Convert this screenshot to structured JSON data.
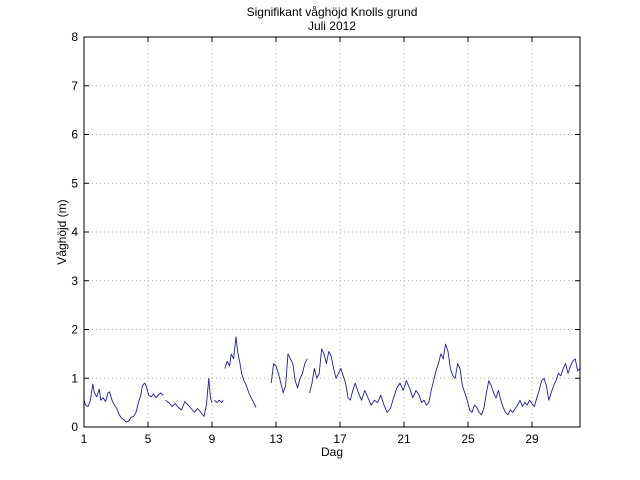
{
  "chart_data": {
    "type": "line",
    "title": "Signifikant våghöjd Knolls grund",
    "subtitle": "Juli 2012",
    "xlabel": "Dag",
    "ylabel": "Våghöjd (m)",
    "xlim": [
      1,
      32
    ],
    "ylim": [
      0,
      8
    ],
    "xticks": [
      1,
      5,
      9,
      13,
      17,
      21,
      25,
      29
    ],
    "yticks": [
      0,
      1,
      2,
      3,
      4,
      5,
      6,
      7,
      8
    ],
    "grid": true,
    "line_color": "#1f1fa0",
    "segments": [
      {
        "x": [
          1.0,
          1.1,
          1.25,
          1.4,
          1.55,
          1.65,
          1.8,
          1.95,
          2.05,
          2.2,
          2.35,
          2.5,
          2.6,
          2.75,
          2.9,
          3.05,
          3.2,
          3.35,
          3.5,
          3.65,
          3.8,
          3.95,
          4.1,
          4.25,
          4.4,
          4.55,
          4.65,
          4.8,
          4.9
        ],
        "y": [
          0.55,
          0.45,
          0.42,
          0.55,
          0.88,
          0.7,
          0.62,
          0.78,
          0.55,
          0.6,
          0.52,
          0.7,
          0.72,
          0.55,
          0.45,
          0.38,
          0.25,
          0.18,
          0.15,
          0.1,
          0.12,
          0.2,
          0.22,
          0.3,
          0.5,
          0.65,
          0.85,
          0.9,
          0.82
        ]
      },
      {
        "x": [
          4.9,
          5.05,
          5.2,
          5.35,
          5.5,
          5.65,
          5.8,
          5.95
        ],
        "y": [
          0.82,
          0.65,
          0.62,
          0.68,
          0.6,
          0.66,
          0.7,
          0.65
        ]
      },
      {
        "x": [
          6.1,
          6.3,
          6.5,
          6.7,
          6.9,
          7.1,
          7.3,
          7.5,
          7.7,
          7.9,
          8.1,
          8.3,
          8.5,
          8.65,
          8.8
        ],
        "y": [
          0.55,
          0.5,
          0.42,
          0.48,
          0.4,
          0.35,
          0.52,
          0.45,
          0.38,
          0.3,
          0.38,
          0.3,
          0.22,
          0.45,
          1.0
        ]
      },
      {
        "x": [
          8.8,
          8.9,
          9.0
        ],
        "y": [
          1.0,
          0.6,
          0.5
        ]
      },
      {
        "x": [
          9.15,
          9.3,
          9.45,
          9.6,
          9.7
        ],
        "y": [
          0.55,
          0.5,
          0.55,
          0.5,
          0.55
        ]
      },
      {
        "x": [
          9.8,
          9.95,
          10.1,
          10.2,
          10.35,
          10.5,
          10.6,
          10.75,
          10.85,
          11.0,
          11.15,
          11.3,
          11.45,
          11.6,
          11.75
        ],
        "y": [
          1.2,
          1.35,
          1.25,
          1.5,
          1.4,
          1.85,
          1.55,
          1.3,
          1.1,
          0.95,
          0.85,
          0.7,
          0.6,
          0.5,
          0.4
        ]
      },
      {
        "x": [
          12.7,
          12.85,
          13.0,
          13.15,
          13.3,
          13.45,
          13.6,
          13.75,
          13.9,
          14.05,
          14.2,
          14.35,
          14.5,
          14.65,
          14.8,
          14.95
        ],
        "y": [
          0.9,
          1.3,
          1.25,
          1.1,
          0.9,
          0.7,
          0.85,
          1.5,
          1.4,
          1.3,
          0.95,
          0.8,
          1.0,
          1.1,
          1.3,
          1.4
        ]
      },
      {
        "x": [
          15.1,
          15.25,
          15.4,
          15.55,
          15.7,
          15.85,
          16.0,
          16.15,
          16.3,
          16.45,
          16.6,
          16.75,
          16.9,
          17.05,
          17.2,
          17.35,
          17.5,
          17.65,
          17.8,
          17.95
        ],
        "y": [
          0.7,
          0.9,
          1.2,
          1.0,
          1.1,
          1.6,
          1.5,
          1.3,
          1.55,
          1.45,
          1.2,
          1.0,
          1.1,
          1.2,
          1.05,
          0.9,
          0.6,
          0.55,
          0.75,
          0.9
        ]
      },
      {
        "x": [
          17.95,
          18.15,
          18.35,
          18.55,
          18.75,
          18.95,
          19.15,
          19.35,
          19.55,
          19.75,
          19.95,
          20.15,
          20.35,
          20.55,
          20.75,
          20.95,
          21.15,
          21.35,
          21.55,
          21.75,
          21.95
        ],
        "y": [
          0.9,
          0.7,
          0.55,
          0.75,
          0.6,
          0.45,
          0.55,
          0.5,
          0.65,
          0.45,
          0.3,
          0.38,
          0.6,
          0.8,
          0.9,
          0.75,
          0.95,
          0.8,
          0.6,
          0.75,
          0.65
        ]
      },
      {
        "x": [
          21.95,
          22.1,
          22.25,
          22.4,
          22.55,
          22.7,
          22.85,
          23.0,
          23.15,
          23.3,
          23.45,
          23.6,
          23.75,
          23.9,
          24.05,
          24.2,
          24.35,
          24.5,
          24.65,
          24.8,
          24.95
        ],
        "y": [
          0.65,
          0.5,
          0.55,
          0.45,
          0.5,
          0.75,
          0.95,
          1.15,
          1.3,
          1.5,
          1.4,
          1.7,
          1.55,
          1.2,
          1.05,
          1.0,
          1.3,
          1.2,
          0.85,
          0.7,
          0.55
        ]
      },
      {
        "x": [
          24.95,
          25.1,
          25.25,
          25.4,
          25.55,
          25.7,
          25.85,
          26.0,
          26.15,
          26.3,
          26.45,
          26.6,
          26.75,
          26.9,
          27.05,
          27.2,
          27.35
        ],
        "y": [
          0.55,
          0.35,
          0.3,
          0.45,
          0.4,
          0.3,
          0.25,
          0.4,
          0.7,
          0.95,
          0.85,
          0.7,
          0.6,
          0.75,
          0.55,
          0.4,
          0.3
        ]
      },
      {
        "x": [
          27.35,
          27.5,
          27.65,
          27.8,
          27.95,
          28.1,
          28.25,
          28.4,
          28.55,
          28.7,
          28.85,
          29.0,
          29.15,
          29.3,
          29.45,
          29.6,
          29.75,
          29.9,
          30.05,
          30.2,
          30.35,
          30.5,
          30.65,
          30.8,
          30.95,
          31.1,
          31.25,
          31.4,
          31.55,
          31.7,
          31.85,
          32.0
        ],
        "y": [
          0.3,
          0.25,
          0.35,
          0.3,
          0.38,
          0.45,
          0.55,
          0.42,
          0.5,
          0.45,
          0.55,
          0.48,
          0.42,
          0.6,
          0.75,
          0.95,
          1.0,
          0.85,
          0.55,
          0.7,
          0.85,
          0.95,
          1.1,
          1.05,
          1.2,
          1.3,
          1.1,
          1.25,
          1.35,
          1.4,
          1.15,
          1.2
        ]
      }
    ]
  }
}
